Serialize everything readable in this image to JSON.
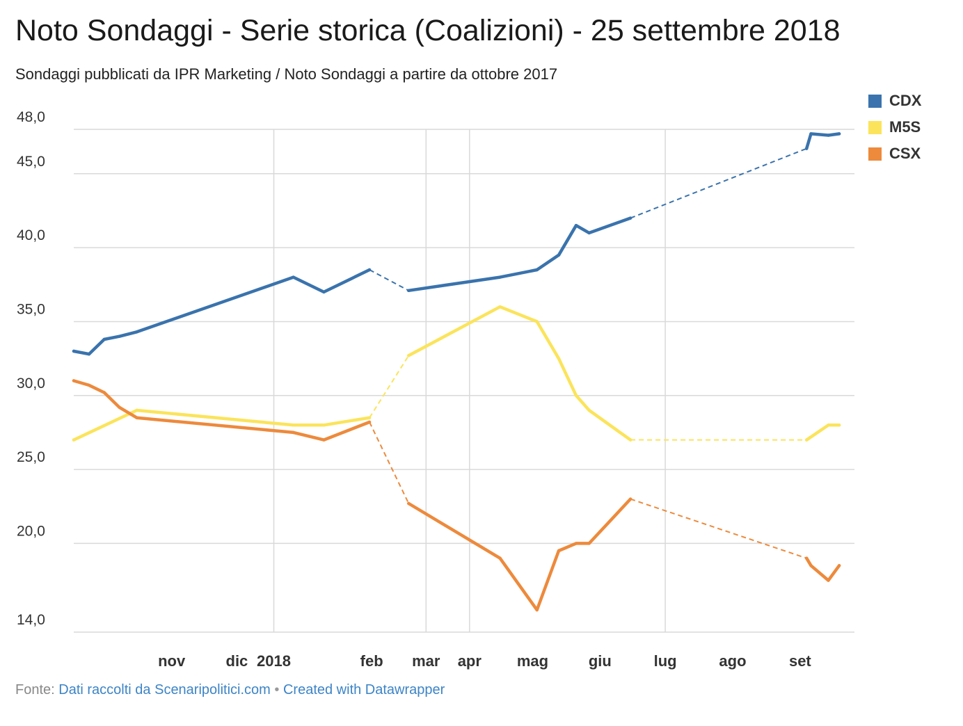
{
  "header": {
    "title": "Noto Sondaggi - Serie storica (Coalizioni) - 25 settembre 2018",
    "subtitle": "Sondaggi pubblicati da IPR Marketing / Noto Sondaggi a partire da ottobre 2017"
  },
  "footer": {
    "source_prefix": "Fonte:",
    "source_link": "Dati raccolti da Scenaripolitici.com",
    "separator": "•",
    "credit_link": "Created with Datawrapper"
  },
  "colors": {
    "CDX": "#3a73ad",
    "M5S": "#fbe45b",
    "CSX": "#ed8a3c",
    "grid": "#d9d9d9"
  },
  "chart_data": {
    "type": "line",
    "title": "Noto Sondaggi - Serie storica (Coalizioni) - 25 settembre 2018",
    "subtitle": "Sondaggi pubblicati da IPR Marketing / Noto Sondaggi a partire da ottobre 2017",
    "xlabel": "",
    "ylabel": "",
    "ylim": [
      14,
      48
    ],
    "y_ticks": [
      {
        "value": 48,
        "label": "48,0"
      },
      {
        "value": 45,
        "label": "45,0"
      },
      {
        "value": 40,
        "label": "40,0"
      },
      {
        "value": 35,
        "label": "35,0"
      },
      {
        "value": 30,
        "label": "30,0"
      },
      {
        "value": 25,
        "label": "25,0"
      },
      {
        "value": 20,
        "label": "20,0"
      },
      {
        "value": 14,
        "label": "14,0"
      }
    ],
    "x_ticks": [
      {
        "date": "2017-11-15",
        "label": "nov"
      },
      {
        "date": "2017-12-15",
        "label": "dic"
      },
      {
        "date": "2018-01-01",
        "label": "2018",
        "grid": true
      },
      {
        "date": "2018-02-15",
        "label": "feb"
      },
      {
        "date": "2018-03-12",
        "label": "mar",
        "grid": true
      },
      {
        "date": "2018-04-01",
        "label": "apr",
        "grid": true
      },
      {
        "date": "2018-04-30",
        "label": "mag"
      },
      {
        "date": "2018-05-31",
        "label": "giu"
      },
      {
        "date": "2018-06-30",
        "label": "lug",
        "grid": true
      },
      {
        "date": "2018-07-31",
        "label": "ago"
      },
      {
        "date": "2018-08-31",
        "label": "set"
      }
    ],
    "x_range": [
      "2017-10-01",
      "2018-09-25"
    ],
    "legend": {
      "position": "top-right",
      "entries": [
        "CDX",
        "M5S",
        "CSX"
      ]
    },
    "grid": true,
    "series": [
      {
        "name": "CDX",
        "points": [
          {
            "x": "2017-10-01",
            "y": 33.0
          },
          {
            "x": "2017-10-08",
            "y": 32.8
          },
          {
            "x": "2017-10-15",
            "y": 33.8
          },
          {
            "x": "2017-10-22",
            "y": 34.0
          },
          {
            "x": "2017-10-30",
            "y": 34.3
          },
          {
            "x": "2018-01-10",
            "y": 38.0
          },
          {
            "x": "2018-01-24",
            "y": 37.0
          },
          {
            "x": "2018-02-14",
            "y": 38.5
          },
          {
            "x": "2018-03-04",
            "y": 37.1,
            "gap_before": true
          },
          {
            "x": "2018-04-15",
            "y": 38.0
          },
          {
            "x": "2018-05-02",
            "y": 38.5
          },
          {
            "x": "2018-05-12",
            "y": 39.5
          },
          {
            "x": "2018-05-20",
            "y": 41.5
          },
          {
            "x": "2018-05-26",
            "y": 41.0
          },
          {
            "x": "2018-06-14",
            "y": 42.0
          },
          {
            "x": "2018-09-03",
            "y": 46.7,
            "gap_before": true
          },
          {
            "x": "2018-09-05",
            "y": 47.7
          },
          {
            "x": "2018-09-13",
            "y": 47.6
          },
          {
            "x": "2018-09-18",
            "y": 47.7
          }
        ]
      },
      {
        "name": "M5S",
        "points": [
          {
            "x": "2017-10-01",
            "y": 27.0
          },
          {
            "x": "2017-10-30",
            "y": 29.0
          },
          {
            "x": "2018-01-10",
            "y": 28.0
          },
          {
            "x": "2018-01-24",
            "y": 28.0
          },
          {
            "x": "2018-02-14",
            "y": 28.5
          },
          {
            "x": "2018-03-04",
            "y": 32.7,
            "gap_before": true
          },
          {
            "x": "2018-04-15",
            "y": 36.0
          },
          {
            "x": "2018-05-02",
            "y": 35.0
          },
          {
            "x": "2018-05-12",
            "y": 32.5
          },
          {
            "x": "2018-05-20",
            "y": 30.0
          },
          {
            "x": "2018-05-26",
            "y": 29.0
          },
          {
            "x": "2018-06-14",
            "y": 27.0
          },
          {
            "x": "2018-09-03",
            "y": 27.0,
            "gap_before": true
          },
          {
            "x": "2018-09-13",
            "y": 28.0
          },
          {
            "x": "2018-09-18",
            "y": 28.0
          }
        ]
      },
      {
        "name": "CSX",
        "points": [
          {
            "x": "2017-10-01",
            "y": 31.0
          },
          {
            "x": "2017-10-08",
            "y": 30.7
          },
          {
            "x": "2017-10-15",
            "y": 30.2
          },
          {
            "x": "2017-10-22",
            "y": 29.2
          },
          {
            "x": "2017-10-30",
            "y": 28.5
          },
          {
            "x": "2018-01-10",
            "y": 27.5
          },
          {
            "x": "2018-01-24",
            "y": 27.0
          },
          {
            "x": "2018-02-14",
            "y": 28.2
          },
          {
            "x": "2018-03-04",
            "y": 22.7,
            "gap_before": true
          },
          {
            "x": "2018-04-15",
            "y": 19.0
          },
          {
            "x": "2018-05-02",
            "y": 15.5
          },
          {
            "x": "2018-05-12",
            "y": 19.5
          },
          {
            "x": "2018-05-20",
            "y": 20.0
          },
          {
            "x": "2018-05-26",
            "y": 20.0
          },
          {
            "x": "2018-06-14",
            "y": 23.0
          },
          {
            "x": "2018-09-03",
            "y": 19.0,
            "gap_before": true
          },
          {
            "x": "2018-09-05",
            "y": 18.5
          },
          {
            "x": "2018-09-13",
            "y": 17.5
          },
          {
            "x": "2018-09-18",
            "y": 18.5
          }
        ]
      }
    ]
  }
}
